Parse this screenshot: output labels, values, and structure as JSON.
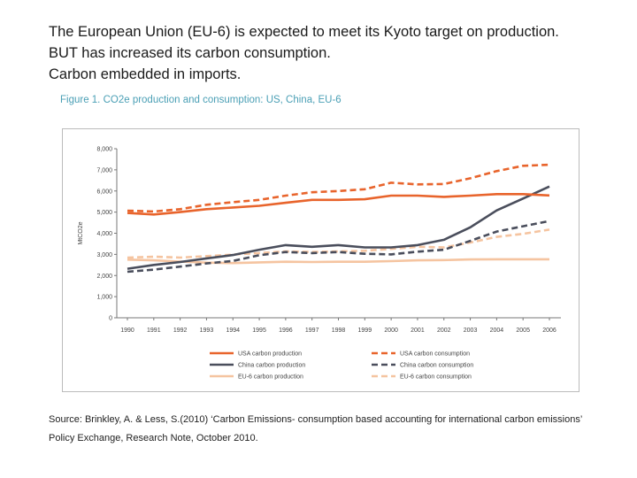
{
  "heading": {
    "line1": "The European Union (EU-6) is expected to meet its Kyoto target on production.",
    "line2": "BUT has increased its carbon consumption.",
    "line3": "Carbon embedded in imports."
  },
  "figure_title": "Figure 1. CO2e production and consumption: US, China, EU-6",
  "source": "Source: Brinkley, A. & Less, S.(2010) ‘Carbon Emissions- consumption based accounting for international carbon emissions’ Policy Exchange, Research Note, October 2010.",
  "chart_data": {
    "type": "line",
    "title": "Figure 1. CO2e production and consumption: US, China, EU-6",
    "xlabel": "",
    "ylabel": "MtCO2e",
    "ylim": [
      0,
      8000
    ],
    "yticks": [
      "0",
      "1,000",
      "2,000",
      "3,000",
      "4,000",
      "5,000",
      "6,000",
      "7,000",
      "8,000"
    ],
    "categories": [
      "1990",
      "1991",
      "1992",
      "1993",
      "1994",
      "1995",
      "1996",
      "1997",
      "1998",
      "1999",
      "2000",
      "2001",
      "2002",
      "2003",
      "2004",
      "2005",
      "2006"
    ],
    "grid": false,
    "legend": "bottom",
    "series": [
      {
        "name": "USA carbon production",
        "color": "#e8642c",
        "dashed": false,
        "values": [
          4960,
          4890,
          5000,
          5140,
          5220,
          5300,
          5440,
          5580,
          5580,
          5610,
          5780,
          5780,
          5720,
          5780,
          5850,
          5850,
          5790
        ]
      },
      {
        "name": "USA carbon consumption",
        "color": "#e8642c",
        "dashed": true,
        "values": [
          5070,
          5030,
          5140,
          5350,
          5470,
          5580,
          5780,
          5940,
          6000,
          6080,
          6390,
          6310,
          6330,
          6600,
          6940,
          7190,
          7240
        ]
      },
      {
        "name": "China carbon production",
        "color": "#4a4e5c",
        "dashed": false,
        "values": [
          2320,
          2500,
          2640,
          2810,
          2970,
          3220,
          3440,
          3360,
          3440,
          3330,
          3330,
          3440,
          3690,
          4280,
          5080,
          5640,
          6210
        ]
      },
      {
        "name": "China carbon consumption",
        "color": "#4a4e5c",
        "dashed": true,
        "values": [
          2180,
          2280,
          2420,
          2570,
          2690,
          2960,
          3110,
          3060,
          3110,
          3030,
          3000,
          3130,
          3220,
          3640,
          4080,
          4330,
          4580
        ]
      },
      {
        "name": "EU-6 carbon production",
        "color": "#f5c4a0",
        "dashed": false,
        "values": [
          2750,
          2720,
          2660,
          2610,
          2590,
          2620,
          2650,
          2640,
          2650,
          2650,
          2680,
          2720,
          2730,
          2760,
          2770,
          2770,
          2770
        ]
      },
      {
        "name": "EU-6 carbon consumption",
        "color": "#f5c4a0",
        "dashed": true,
        "values": [
          2850,
          2890,
          2850,
          2920,
          2990,
          3060,
          3140,
          3110,
          3140,
          3170,
          3260,
          3360,
          3330,
          3560,
          3830,
          3970,
          4170
        ]
      }
    ]
  }
}
